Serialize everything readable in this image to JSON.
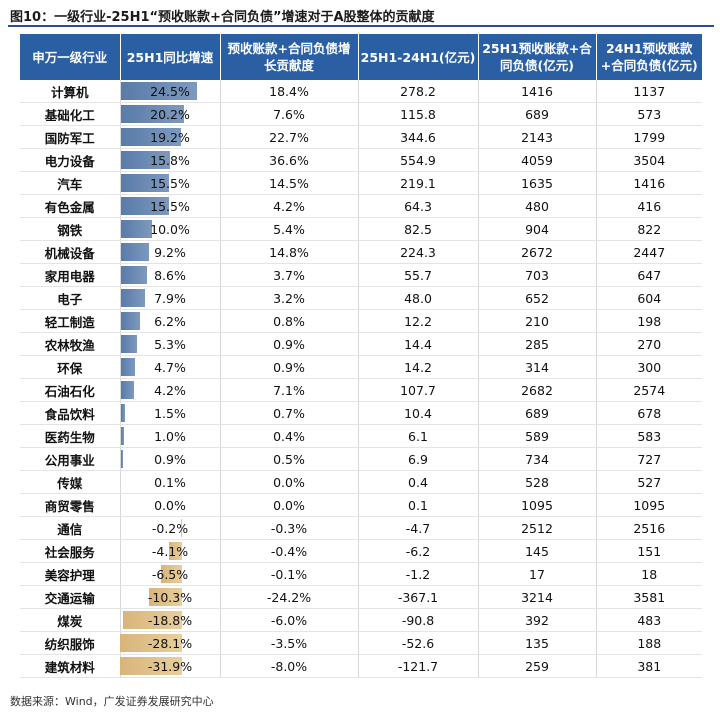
{
  "title": "图10：一级行业-25H1“预收账款+合同负债”增速对于A股整体的贡献度",
  "source": "数据来源：Wind，广发证券发展研究中心",
  "colors": {
    "header": "#2a5fa3",
    "positive_bar": "#587ba8",
    "negative_bar": "#d9b47a"
  },
  "table": {
    "headers": [
      "申万一级行业",
      "25H1同比增速",
      "预收账款+合同负债增长贡献度",
      "25H1-24H1(亿元)",
      "25H1预收账款+合同负债(亿元)",
      "24H1预收账款+合同负债(亿元)"
    ],
    "rows": [
      {
        "industry": "计算机",
        "yoy": "24.5%",
        "yoy_value": 24.5,
        "contrib": "18.4%",
        "diff": "278.2",
        "h1_25": "1416",
        "h1_24": "1137"
      },
      {
        "industry": "基础化工",
        "yoy": "20.2%",
        "yoy_value": 20.2,
        "contrib": "7.6%",
        "diff": "115.8",
        "h1_25": "689",
        "h1_24": "573"
      },
      {
        "industry": "国防军工",
        "yoy": "19.2%",
        "yoy_value": 19.2,
        "contrib": "22.7%",
        "diff": "344.6",
        "h1_25": "2143",
        "h1_24": "1799"
      },
      {
        "industry": "电力设备",
        "yoy": "15.8%",
        "yoy_value": 15.8,
        "contrib": "36.6%",
        "diff": "554.9",
        "h1_25": "4059",
        "h1_24": "3504"
      },
      {
        "industry": "汽车",
        "yoy": "15.5%",
        "yoy_value": 15.5,
        "contrib": "14.5%",
        "diff": "219.1",
        "h1_25": "1635",
        "h1_24": "1416"
      },
      {
        "industry": "有色金属",
        "yoy": "15.5%",
        "yoy_value": 15.5,
        "contrib": "4.2%",
        "diff": "64.3",
        "h1_25": "480",
        "h1_24": "416"
      },
      {
        "industry": "钢铁",
        "yoy": "10.0%",
        "yoy_value": 10.0,
        "contrib": "5.4%",
        "diff": "82.5",
        "h1_25": "904",
        "h1_24": "822"
      },
      {
        "industry": "机械设备",
        "yoy": "9.2%",
        "yoy_value": 9.2,
        "contrib": "14.8%",
        "diff": "224.3",
        "h1_25": "2672",
        "h1_24": "2447"
      },
      {
        "industry": "家用电器",
        "yoy": "8.6%",
        "yoy_value": 8.6,
        "contrib": "3.7%",
        "diff": "55.7",
        "h1_25": "703",
        "h1_24": "647"
      },
      {
        "industry": "电子",
        "yoy": "7.9%",
        "yoy_value": 7.9,
        "contrib": "3.2%",
        "diff": "48.0",
        "h1_25": "652",
        "h1_24": "604"
      },
      {
        "industry": "轻工制造",
        "yoy": "6.2%",
        "yoy_value": 6.2,
        "contrib": "0.8%",
        "diff": "12.2",
        "h1_25": "210",
        "h1_24": "198"
      },
      {
        "industry": "农林牧渔",
        "yoy": "5.3%",
        "yoy_value": 5.3,
        "contrib": "0.9%",
        "diff": "14.4",
        "h1_25": "285",
        "h1_24": "270"
      },
      {
        "industry": "环保",
        "yoy": "4.7%",
        "yoy_value": 4.7,
        "contrib": "0.9%",
        "diff": "14.2",
        "h1_25": "314",
        "h1_24": "300"
      },
      {
        "industry": "石油石化",
        "yoy": "4.2%",
        "yoy_value": 4.2,
        "contrib": "7.1%",
        "diff": "107.7",
        "h1_25": "2682",
        "h1_24": "2574"
      },
      {
        "industry": "食品饮料",
        "yoy": "1.5%",
        "yoy_value": 1.5,
        "contrib": "0.7%",
        "diff": "10.4",
        "h1_25": "689",
        "h1_24": "678"
      },
      {
        "industry": "医药生物",
        "yoy": "1.0%",
        "yoy_value": 1.0,
        "contrib": "0.4%",
        "diff": "6.1",
        "h1_25": "589",
        "h1_24": "583"
      },
      {
        "industry": "公用事业",
        "yoy": "0.9%",
        "yoy_value": 0.9,
        "contrib": "0.5%",
        "diff": "6.9",
        "h1_25": "734",
        "h1_24": "727"
      },
      {
        "industry": "传媒",
        "yoy": "0.1%",
        "yoy_value": 0.1,
        "contrib": "0.0%",
        "diff": "0.4",
        "h1_25": "528",
        "h1_24": "527"
      },
      {
        "industry": "商贸零售",
        "yoy": "0.0%",
        "yoy_value": 0.0,
        "contrib": "0.0%",
        "diff": "0.1",
        "h1_25": "1095",
        "h1_24": "1095"
      },
      {
        "industry": "通信",
        "yoy": "-0.2%",
        "yoy_value": -0.2,
        "contrib": "-0.3%",
        "diff": "-4.7",
        "h1_25": "2512",
        "h1_24": "2516"
      },
      {
        "industry": "社会服务",
        "yoy": "-4.1%",
        "yoy_value": -4.1,
        "contrib": "-0.4%",
        "diff": "-6.2",
        "h1_25": "145",
        "h1_24": "151"
      },
      {
        "industry": "美容护理",
        "yoy": "-6.5%",
        "yoy_value": -6.5,
        "contrib": "-0.1%",
        "diff": "-1.2",
        "h1_25": "17",
        "h1_24": "18"
      },
      {
        "industry": "交通运输",
        "yoy": "-10.3%",
        "yoy_value": -10.3,
        "contrib": "-24.2%",
        "diff": "-367.1",
        "h1_25": "3214",
        "h1_24": "3581"
      },
      {
        "industry": "煤炭",
        "yoy": "-18.8%",
        "yoy_value": -18.8,
        "contrib": "-6.0%",
        "diff": "-90.8",
        "h1_25": "392",
        "h1_24": "483"
      },
      {
        "industry": "纺织服饰",
        "yoy": "-28.1%",
        "yoy_value": -28.1,
        "contrib": "-3.5%",
        "diff": "-52.6",
        "h1_25": "135",
        "h1_24": "188"
      },
      {
        "industry": "建筑材料",
        "yoy": "-31.9%",
        "yoy_value": -31.9,
        "contrib": "-8.0%",
        "diff": "-121.7",
        "h1_25": "259",
        "h1_24": "381"
      }
    ]
  }
}
